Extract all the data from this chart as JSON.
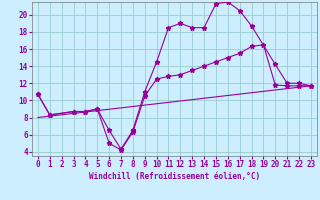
{
  "xlabel": "Windchill (Refroidissement éolien,°C)",
  "background_color": "#cceeff",
  "grid_color": "#99cccc",
  "line_color": "#990099",
  "xlim": [
    -0.5,
    23.5
  ],
  "ylim": [
    3.5,
    21.5
  ],
  "xticks": [
    0,
    1,
    2,
    3,
    4,
    5,
    6,
    7,
    8,
    9,
    10,
    11,
    12,
    13,
    14,
    15,
    16,
    17,
    18,
    19,
    20,
    21,
    22,
    23
  ],
  "yticks": [
    4,
    6,
    8,
    10,
    12,
    14,
    16,
    18,
    20
  ],
  "curve1_x": [
    0,
    1,
    3,
    4,
    5,
    6,
    7,
    8,
    9,
    10,
    11,
    12,
    13,
    14,
    15,
    16,
    17,
    18,
    20,
    21,
    22,
    23
  ],
  "curve1_y": [
    10.7,
    8.3,
    8.7,
    8.7,
    9.0,
    6.5,
    4.3,
    6.5,
    11.0,
    14.5,
    18.5,
    19.0,
    18.5,
    18.5,
    21.3,
    21.5,
    20.5,
    18.7,
    14.2,
    12.0,
    12.0,
    11.7
  ],
  "curve2_x": [
    0,
    1,
    3,
    4,
    5,
    6,
    7,
    8,
    9,
    10,
    11,
    12,
    13,
    14,
    15,
    16,
    17,
    18,
    19,
    20,
    21,
    22,
    23
  ],
  "curve2_y": [
    10.7,
    8.3,
    8.7,
    8.7,
    9.0,
    5.0,
    4.2,
    6.3,
    10.5,
    12.5,
    12.8,
    13.0,
    13.5,
    14.0,
    14.5,
    15.0,
    15.5,
    16.3,
    16.5,
    11.8,
    11.7,
    11.7,
    11.7
  ],
  "curve3_x": [
    0,
    23
  ],
  "curve3_y": [
    8.0,
    11.7
  ],
  "tick_fontsize": 5.5,
  "xlabel_fontsize": 5.5
}
